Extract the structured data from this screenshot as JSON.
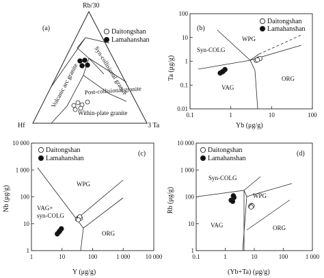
{
  "chart_data": [
    {
      "panel": "(a)",
      "type": "scatter",
      "subtype": "ternary",
      "apex_labels": [
        "Rb/30",
        "Hf",
        "3 Ta"
      ],
      "field_labels": [
        "Volcanic arc granite",
        "Syn-collisional granite",
        "Post-collisional granite",
        "Within-plate granite"
      ],
      "series": [
        {
          "name": "Daitongshan",
          "marker": "open-circle",
          "points": [
            [
              0.13,
              0.34
            ],
            [
              0.15,
              0.3
            ],
            [
              0.12,
              0.28
            ],
            [
              0.18,
              0.33
            ],
            [
              0.14,
              0.36
            ],
            [
              0.1,
              0.38
            ]
          ]
        },
        {
          "name": "Lamahanshan",
          "marker": "filled-circle",
          "points": [
            [
              0.6,
              0.17
            ],
            [
              0.64,
              0.16
            ],
            [
              0.62,
              0.2
            ],
            [
              0.58,
              0.19
            ]
          ]
        }
      ]
    },
    {
      "panel": "(b)",
      "type": "scatter",
      "xscale": "log",
      "yscale": "log",
      "xlabel": "Yb (μg/g)",
      "ylabel": "Ta (μg/g)",
      "xlim": [
        0.1,
        100
      ],
      "ylim": [
        0.01,
        100
      ],
      "xticks": [
        "0.1",
        "1",
        "10",
        "100"
      ],
      "yticks": [
        "0.01",
        "0.1",
        "1",
        "10",
        "100"
      ],
      "field_labels": [
        "WPG",
        "Syn-COLG",
        "VAG",
        "ORG"
      ],
      "series": [
        {
          "name": "Daitongshan",
          "marker": "open-circle",
          "points": [
            [
              4.2,
              1.1
            ],
            [
              4.8,
              1.25
            ],
            [
              5.2,
              1.3
            ],
            [
              4.5,
              1.15
            ]
          ]
        },
        {
          "name": "Lamahanshan",
          "marker": "filled-circle",
          "points": [
            [
              0.55,
              0.32
            ],
            [
              0.65,
              0.38
            ],
            [
              0.72,
              0.45
            ],
            [
              0.62,
              0.36
            ]
          ]
        }
      ]
    },
    {
      "panel": "(c)",
      "type": "scatter",
      "xscale": "log",
      "yscale": "log",
      "xlabel": "Y (μg/g)",
      "ylabel": "Nb (μg/g)",
      "xlim": [
        1,
        10000
      ],
      "ylim": [
        1,
        10000
      ],
      "xticks": [
        "1",
        "10",
        "100",
        "1 000",
        "10 000"
      ],
      "yticks": [
        "1",
        "10",
        "100",
        "1 000",
        "10 000"
      ],
      "field_labels": [
        "WPG",
        "VAG+ syn-COLG",
        "ORG"
      ],
      "series": [
        {
          "name": "Daitongshan",
          "marker": "open-circle",
          "points": [
            [
              32,
              15
            ],
            [
              36,
              17
            ],
            [
              40,
              16
            ],
            [
              38,
              18
            ],
            [
              34,
              14
            ]
          ]
        },
        {
          "name": "Lamahanshan",
          "marker": "filled-circle",
          "points": [
            [
              7,
              4.2
            ],
            [
              8.5,
              5.5
            ],
            [
              9.5,
              6.5
            ],
            [
              8,
              5
            ]
          ]
        }
      ]
    },
    {
      "panel": "(d)",
      "type": "scatter",
      "xscale": "log",
      "yscale": "log",
      "xlabel": "(Yb+Ta) (μg/g)",
      "ylabel": "Rb (μg/g)",
      "xlim": [
        0.1,
        1000
      ],
      "ylim": [
        1,
        10000
      ],
      "xticks": [
        "0.1",
        "1",
        "10",
        "100",
        "1 000"
      ],
      "yticks": [
        "1",
        "10",
        "100",
        "1 000",
        "10 000"
      ],
      "field_labels": [
        "Syn-COLG",
        "WPG",
        "VAG",
        "ORG"
      ],
      "series": [
        {
          "name": "Daitongshan",
          "marker": "open-circle",
          "points": [
            [
              7.5,
              44
            ],
            [
              8,
              48
            ],
            [
              8.5,
              46
            ],
            [
              7.8,
              42
            ]
          ]
        },
        {
          "name": "Lamahanshan",
          "marker": "filled-circle",
          "points": [
            [
              1.6,
              75
            ],
            [
              1.8,
              68
            ],
            [
              2.0,
              95
            ],
            [
              1.9,
              110
            ]
          ]
        }
      ]
    }
  ]
}
